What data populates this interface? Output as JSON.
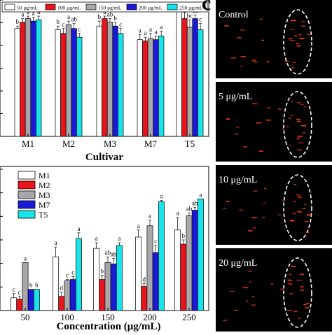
{
  "panel_c": {
    "label": "c",
    "image_labels": [
      "Control",
      "5 μg/mL",
      "10 μg/mL",
      "20 μg/mL"
    ]
  },
  "chart_data": [
    {
      "type": "bar",
      "title": "",
      "xlabel": "Cultivar",
      "ylabel": "",
      "categories": [
        "M1",
        "M2",
        "M3",
        "M7",
        "T5"
      ],
      "ylim": [
        0,
        1.1
      ],
      "grid": false,
      "legend_placement": "top",
      "colors": [
        "#ffffff",
        "#e8141c",
        "#a8a8a8",
        "#1a1ad6",
        "#19e3e8"
      ],
      "series": [
        {
          "name": "50 μg/mL",
          "values": [
            0.87,
            0.86,
            0.89,
            0.78,
            1.02
          ],
          "errors": [
            0.02,
            0.03,
            0.04,
            0.04,
            0.02
          ],
          "letters": [
            "b",
            "b",
            "b",
            "a",
            "a"
          ]
        },
        {
          "name": "100 μg/mL",
          "values": [
            0.92,
            0.83,
            0.95,
            0.77,
            0.95
          ],
          "errors": [
            0.03,
            0.04,
            0.02,
            0.03,
            0.05
          ],
          "letters": [
            "a",
            "c",
            "a",
            "a",
            "b"
          ]
        },
        {
          "name": "150 μg/mL",
          "values": [
            0.95,
            0.9,
            0.92,
            0.79,
            0.88
          ],
          "errors": [
            0.02,
            0.03,
            0.03,
            0.04,
            0.06
          ],
          "letters": [
            "a",
            "a",
            "ab",
            "a",
            "bc"
          ]
        },
        {
          "name": "200 μg/mL",
          "values": [
            0.93,
            0.87,
            0.89,
            0.78,
            0.95
          ],
          "errors": [
            0.03,
            0.04,
            0.03,
            0.03,
            0.03
          ],
          "letters": [
            "a",
            "ab",
            "b",
            "a",
            "bc"
          ]
        },
        {
          "name": "250 μg/mL",
          "values": [
            0.94,
            0.8,
            0.83,
            0.81,
            0.86
          ],
          "errors": [
            0.03,
            0.03,
            0.04,
            0.04,
            0.05
          ],
          "letters": [
            "a",
            "c",
            "c",
            "a",
            "c"
          ]
        }
      ],
      "tick_labels": []
    },
    {
      "type": "bar",
      "title": "",
      "xlabel": "Concentration (μg/mL)",
      "ylabel": "",
      "categories": [
        "50",
        "100",
        "150",
        "200",
        "250"
      ],
      "ylim": [
        0,
        1.0
      ],
      "grid": false,
      "legend_placement": "top-left",
      "colors": [
        "#ffffff",
        "#e8141c",
        "#a8a8a8",
        "#1a1ad6",
        "#19e3e8"
      ],
      "series": [
        {
          "name": "M1",
          "values": [
            0.09,
            0.38,
            0.44,
            0.52,
            0.57
          ],
          "errors": [
            0.03,
            0.07,
            0.04,
            0.05,
            0.09
          ],
          "letters": [
            "c",
            "a",
            "a",
            "a",
            "a"
          ]
        },
        {
          "name": "M2",
          "values": [
            0.08,
            0.1,
            0.22,
            0.17,
            0.47
          ],
          "errors": [
            0.02,
            0.03,
            0.03,
            0.02,
            0.03
          ],
          "letters": [
            "c",
            "d",
            "b",
            "d",
            "b"
          ]
        },
        {
          "name": "M3",
          "values": [
            0.34,
            0.21,
            0.34,
            0.6,
            0.67
          ],
          "errors": [
            0.0,
            0.01,
            0.04,
            0.04,
            0.02
          ],
          "letters": [
            "a",
            "c",
            "ab",
            "a",
            "ab"
          ]
        },
        {
          "name": "M7",
          "values": [
            0.15,
            0.22,
            0.33,
            0.41,
            0.71
          ],
          "errors": [
            0.0,
            0.02,
            0.04,
            0.05,
            0.02
          ],
          "letters": [
            "b",
            "c",
            "ab",
            "c",
            "ab"
          ]
        },
        {
          "name": "T5",
          "values": [
            0.15,
            0.51,
            0.46,
            0.77,
            0.79
          ],
          "errors": [
            0.0,
            0.04,
            0.02,
            0.01,
            0.0
          ],
          "letters": [
            "b",
            "a",
            "a",
            "a",
            "a"
          ]
        }
      ],
      "tick_labels": [
        "50",
        "100",
        "150",
        "200",
        "250"
      ]
    }
  ]
}
